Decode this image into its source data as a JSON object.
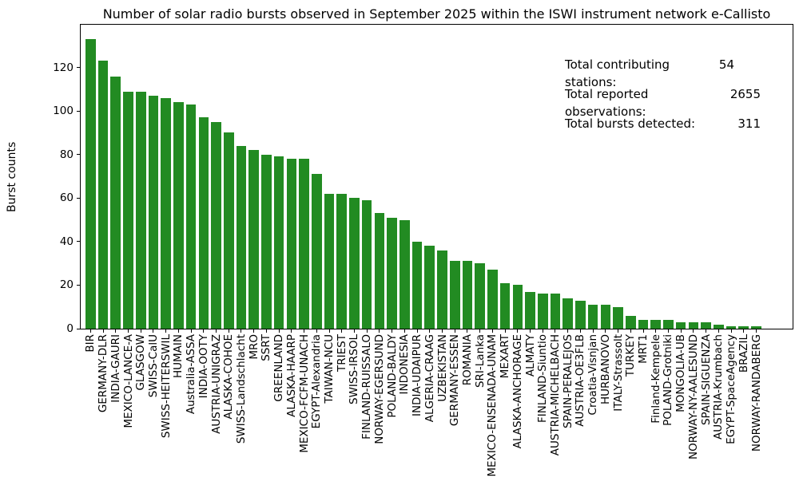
{
  "title": "Number of solar radio bursts observed in September 2025 within the ISWI instrument network e-Callisto",
  "ylabel": "Burst counts",
  "stats_box": {
    "rows": [
      {
        "label": "Total contributing stations:",
        "value": "54"
      },
      {
        "label": "Total reported observations:",
        "value": "2655"
      },
      {
        "label": "Total bursts detected:",
        "value": "311"
      }
    ]
  },
  "chart_data": {
    "type": "bar",
    "title": "Number of solar radio bursts observed in September 2025 within the ISWI instrument network e-Callisto",
    "xlabel": "",
    "ylabel": "Burst counts",
    "ylim": [
      0,
      139.65
    ],
    "yticks": [
      0,
      20,
      40,
      60,
      80,
      100,
      120
    ],
    "grid": false,
    "legend": "none",
    "bar_color": "#228B22",
    "categories": [
      "BIR",
      "GERMANY-DLR",
      "INDIA-GAURI",
      "MEXICO-LANCE-A",
      "GLASGOW",
      "SWISS-CalU",
      "SWISS-HEITERSWIL",
      "HUMAIN",
      "Australia-ASSA",
      "INDIA-OOTY",
      "AUSTRIA-UNIGRAZ",
      "ALASKA-COHOE",
      "SWISS-Landschlacht",
      "MRO",
      "SSRT",
      "GREENLAND",
      "ALASKA-HAARP",
      "MEXICO-FCFM-UNACH",
      "EGYPT-Alexandria",
      "TAIWAN-NCU",
      "TRIEST",
      "SWISS-IRSOL",
      "FINLAND-RUISSALO",
      "NORWAY-EGERSUND",
      "POLAND-BALDY",
      "INDONESIA",
      "INDIA-UDAIPUR",
      "ALGERIA-CRAAG",
      "UZBEKISTAN",
      "GERMANY-ESSEN",
      "ROMANIA",
      "SRI-Lanka",
      "MEXICO-ENSENADA-UNAM",
      "MEXART",
      "ALASKA-ANCHORAGE",
      "ALMATY",
      "FINLAND-Siuntio",
      "AUSTRIA-MICHELBACH",
      "SPAIN-PERALEJOS",
      "AUSTRIA-OE3FLB",
      "Croatia-Visnjan",
      "HURBANOVO",
      "ITALY-Strassolt",
      "TURKEY",
      "MRT1",
      "Finland-Kempele",
      "POLAND-Grotniki",
      "MONGOLIA-UB",
      "NORWAY-NY-AALESUND",
      "SPAIN-SIGUENZA",
      "AUSTRIA-Krumbach",
      "EGYPT-SpaceAgency",
      "BRAZIL",
      "NORWAY-RANDABERG"
    ],
    "values": [
      133,
      123,
      116,
      109,
      109,
      107,
      106,
      104,
      103,
      97,
      95,
      90,
      84,
      82,
      80,
      79,
      78,
      78,
      71,
      62,
      62,
      60,
      59,
      53,
      51,
      50,
      40,
      38,
      36,
      31,
      31,
      30,
      27,
      21,
      20,
      17,
      16,
      16,
      14,
      13,
      11,
      11,
      10,
      6,
      4,
      4,
      4,
      3,
      3,
      3,
      2,
      1,
      1,
      1
    ],
    "annotations": [
      "Total contributing stations:  54",
      "Total reported observations:   2655",
      "Total bursts detected:          311"
    ]
  }
}
